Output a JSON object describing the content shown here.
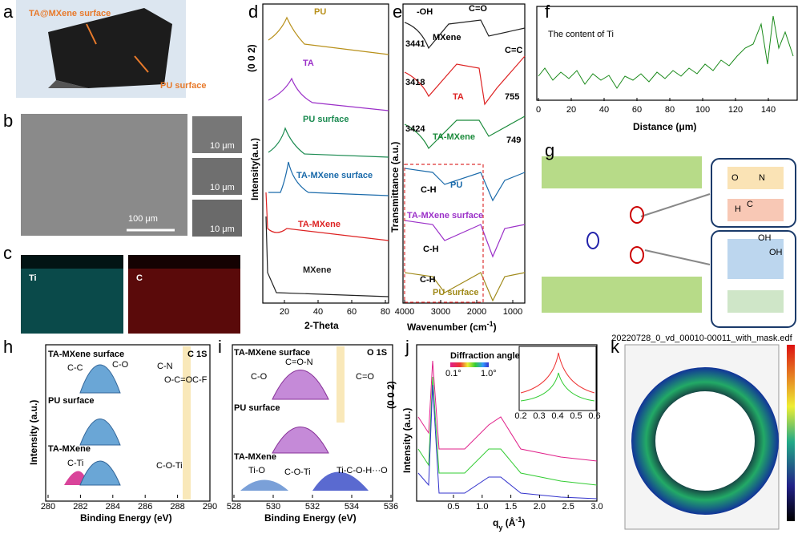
{
  "panels": {
    "a": {
      "label": "a",
      "texts": [
        "TA@MXene surface",
        "PU surface"
      ]
    },
    "b": {
      "label": "b",
      "scale": "100 μm",
      "insets": [
        "10 μm",
        "10 μm",
        "10 μm"
      ]
    },
    "c": {
      "label": "c",
      "maps": [
        "Ti",
        "C"
      ]
    },
    "d": {
      "label": "d",
      "ylabel": "Intensity(a.u.)",
      "xlabel": "2-Theta",
      "peak": "(0 0 2)",
      "xticks": [
        20,
        40,
        60,
        80
      ],
      "curves": [
        "PU",
        "TA",
        "PU surface",
        "TA-MXene surface",
        "TA-MXene",
        "MXene"
      ]
    },
    "e": {
      "label": "e",
      "ylabel": "Transmittance (a.u.)",
      "xlabel": "Wavenumber (cm",
      "xlabel_sup": "-1",
      "xlabel_end": ")",
      "xticks": [
        4000,
        3000,
        2000,
        1000
      ],
      "texts": [
        "-OH",
        "C=O",
        "MXene",
        "3441",
        "C=C",
        "3418",
        "TA",
        "755",
        "3424",
        "TA-MXene",
        "749",
        "C-H",
        "PU",
        "TA-MXene surface",
        "C-H",
        "C-H",
        "PU surface"
      ]
    },
    "f": {
      "label": "f",
      "title": "The content of Ti",
      "xlabel": "Distance (μm)",
      "xticks": [
        0,
        20,
        40,
        60,
        80,
        100,
        120,
        140
      ]
    },
    "g": {
      "label": "g",
      "atoms": [
        "O",
        "C",
        "N",
        "H",
        "OH",
        "OH"
      ]
    },
    "h": {
      "label": "h",
      "ylabel": "Intensity (a.u.)",
      "xlabel": "Binding Energy (eV)",
      "xticks": [
        280,
        282,
        284,
        286,
        288,
        290
      ],
      "texts": [
        "TA-MXene surface",
        "C 1S",
        "C-C",
        "C-O",
        "C-N",
        "O-C=O",
        "C-F",
        "PU surface",
        "TA-MXene",
        "C-Ti",
        "C-O-Ti"
      ]
    },
    "i": {
      "label": "i",
      "xlabel": "Binding Energy (eV)",
      "xticks": [
        528,
        530,
        532,
        534,
        536
      ],
      "texts": [
        "TA-MXene surface",
        "O 1S",
        "C=O-N",
        "C-O",
        "C=O",
        "PU surface",
        "TA-MXene",
        "Ti-O",
        "C-O-Ti",
        "Ti-C-O-H···O"
      ]
    },
    "j": {
      "label": "j",
      "ylabel": "Intensity (a.u.)",
      "xlabel": "q",
      "xlabel_sub": "y",
      "xlabel_end": " (Å",
      "xlabel_sup": "-1",
      "xlabel_close": ")",
      "peak": "(0 0 2)",
      "legend_title": "Diffraction angle",
      "legend_min": "0.1°",
      "legend_max": "1.0°",
      "xticks": [
        0.5,
        1.0,
        1.5,
        2.0,
        2.5,
        3.0
      ],
      "xtick_labels": [
        "0.5",
        "1.0",
        "1.5",
        "2.0",
        "2.5",
        "3.0"
      ],
      "inset_xticks": [
        0.2,
        0.3,
        0.4,
        0.5,
        0.6
      ]
    },
    "k": {
      "label": "k",
      "title": "20220728_0_vd_00010-00011_with_mask.edf"
    }
  }
}
